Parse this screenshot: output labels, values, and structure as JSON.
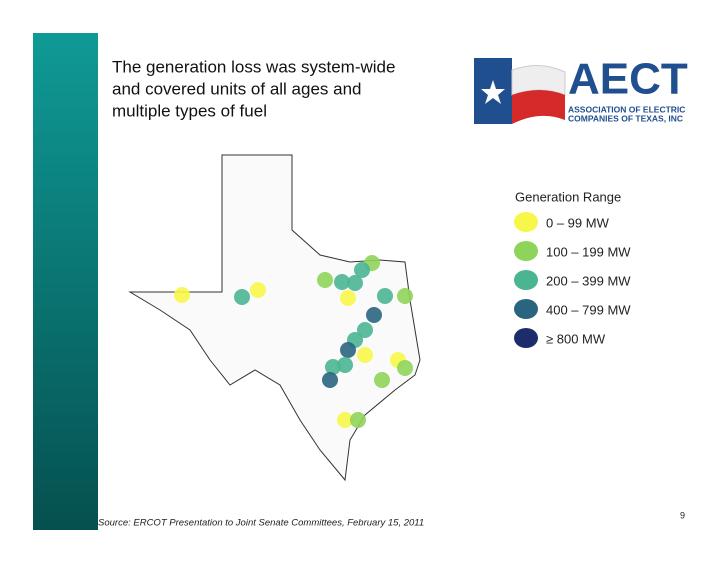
{
  "header": {
    "title_lines": [
      "The generation loss was system-wide",
      "and covered units of all ages and",
      "multiple types of fuel"
    ]
  },
  "logo": {
    "name": "AECT",
    "lines": [
      "ASSOCIATION OF ELECTRIC",
      "COMPANIES OF TEXAS, INC"
    ]
  },
  "legend": {
    "title": "Generation Range",
    "items": [
      {
        "name": "0 – 99 MW",
        "color": "#f7f74a"
      },
      {
        "name": "100 – 199 MW",
        "color": "#8fd45a"
      },
      {
        "name": "200 – 399 MW",
        "color": "#4bb592"
      },
      {
        "name": "400 – 799 MW",
        "color": "#2a6580"
      },
      {
        "name": "≥ 800 MW",
        "color": "#1d2d6b"
      }
    ]
  },
  "footer": {
    "source": "Source: ERCOT Presentation to Joint Senate Committees, February 15, 2011",
    "page": "9"
  }
}
